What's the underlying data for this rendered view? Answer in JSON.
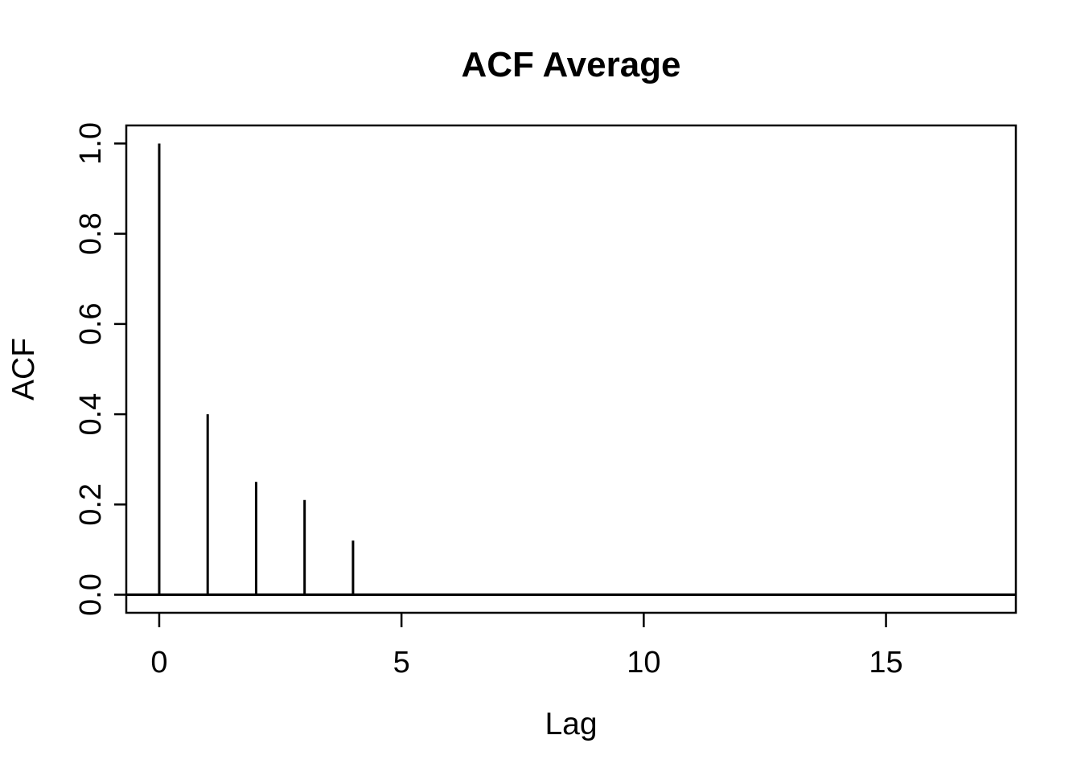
{
  "figure": {
    "background": "#ffffff",
    "foreground": "#000000"
  },
  "chart_data": {
    "type": "bar",
    "variant": "stem-acf",
    "title": "ACF Average",
    "xlabel": "Lag",
    "ylabel": "ACF",
    "x": [
      0,
      1,
      2,
      3,
      4,
      5,
      6,
      7,
      8,
      9,
      10,
      11,
      12,
      13,
      14,
      15,
      16,
      17
    ],
    "values": [
      1.0,
      0.4,
      0.25,
      0.21,
      0.12,
      0,
      0,
      0,
      0,
      0,
      0,
      0,
      0,
      0,
      0,
      0,
      0,
      0
    ],
    "xlim": [
      -0.68,
      17.68
    ],
    "ylim": [
      -0.04,
      1.04
    ],
    "xticks": {
      "values": [
        0,
        5,
        10,
        15
      ],
      "labels": [
        "0",
        "5",
        "10",
        "15"
      ]
    },
    "yticks": {
      "values": [
        0.0,
        0.2,
        0.4,
        0.6,
        0.8,
        1.0
      ],
      "labels": [
        "0.0",
        "0.2",
        "0.4",
        "0.6",
        "0.8",
        "1.0"
      ]
    },
    "zero_line_y": 0,
    "grid": false,
    "box": true
  }
}
